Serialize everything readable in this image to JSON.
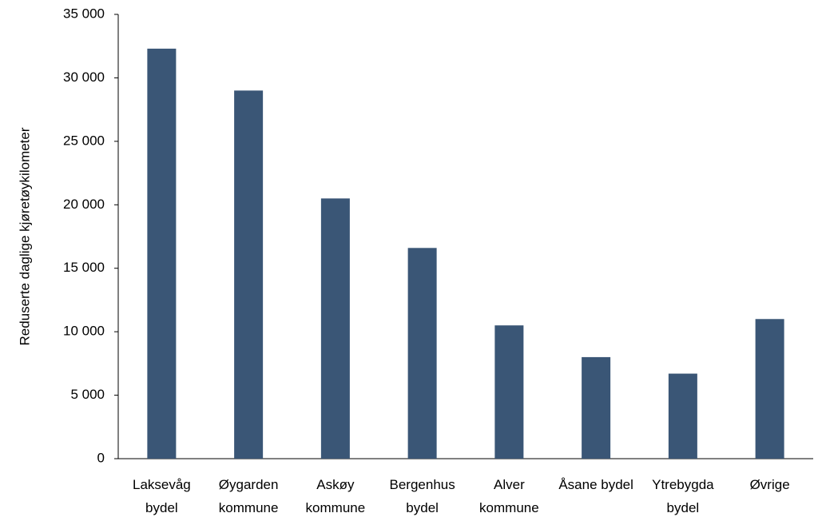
{
  "chart_data": {
    "type": "bar",
    "y_label": "Reduserte daglige kjøretøykilometer",
    "categories": [
      "Laksevåg bydel",
      "Øygarden kommune",
      "Askøy kommune",
      "Bergenhus bydel",
      "Alver kommune",
      "Åsane bydel",
      "Ytrebygda bydel",
      "Øvrige"
    ],
    "values": [
      32300,
      29000,
      20500,
      16600,
      10500,
      8000,
      6700,
      11000
    ],
    "color": "#3a5676",
    "ylim": [
      0,
      35000
    ],
    "yticks": [
      0,
      {
        "value": 5000,
        "label": "5 000"
      },
      {
        "value": 10000,
        "label": "10 000"
      },
      {
        "value": 15000,
        "label": "15 000"
      },
      {
        "value": 20000,
        "label": "20 000"
      },
      {
        "value": 25000,
        "label": "25 000"
      },
      {
        "value": 30000,
        "label": "30 000"
      },
      {
        "value": 35000,
        "label": "35 000"
      }
    ],
    "grid": false
  }
}
